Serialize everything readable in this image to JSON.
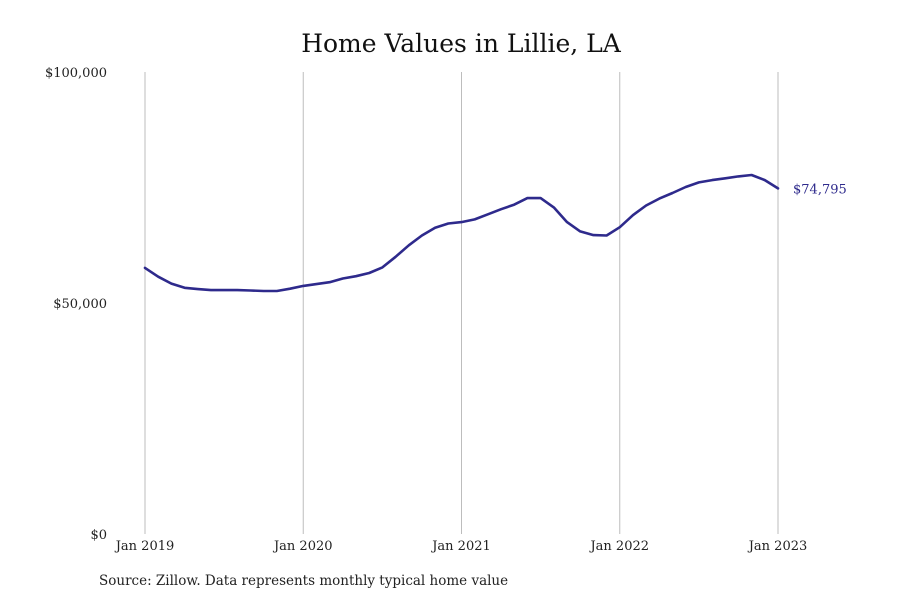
{
  "chart_data": {
    "type": "line",
    "title": "Home Values in Lillie, LA",
    "source": "Source: Zillow. Data represents monthly typical home value",
    "x_ticks": [
      "Jan 2019",
      "Jan 2020",
      "Jan 2021",
      "Jan 2022",
      "Jan 2023"
    ],
    "y_ticks": [
      "$0",
      "$50,000",
      "$100,000"
    ],
    "y_tick_values": [
      0,
      50000,
      100000
    ],
    "ylim": [
      0,
      100000
    ],
    "grid": "vertical",
    "line_color": "#2e2a8c",
    "end_label": "$74,795",
    "series": [
      {
        "x": [
          "2019-01",
          "2019-02",
          "2019-03",
          "2019-04",
          "2019-05",
          "2019-06",
          "2019-07",
          "2019-08",
          "2019-09",
          "2019-10",
          "2019-11",
          "2019-12",
          "2020-01",
          "2020-02",
          "2020-03",
          "2020-04",
          "2020-05",
          "2020-06",
          "2020-07",
          "2020-08",
          "2020-09",
          "2020-10",
          "2020-11",
          "2020-12",
          "2021-01",
          "2021-02",
          "2021-03",
          "2021-04",
          "2021-05",
          "2021-06",
          "2021-07",
          "2021-08",
          "2021-09",
          "2021-10",
          "2021-11",
          "2021-12",
          "2022-01",
          "2022-02",
          "2022-03",
          "2022-04",
          "2022-05",
          "2022-06",
          "2022-07",
          "2022-08",
          "2022-09",
          "2022-10",
          "2022-11",
          "2022-12",
          "2023-01"
        ],
        "values": [
          57600,
          55700,
          54200,
          53300,
          53000,
          52800,
          52800,
          52800,
          52700,
          52600,
          52600,
          53100,
          53700,
          54100,
          54500,
          55300,
          55800,
          56500,
          57700,
          60000,
          62500,
          64600,
          66300,
          67200,
          67500,
          68100,
          69200,
          70300,
          71300,
          72700,
          72700,
          70700,
          67500,
          65500,
          64700,
          64600,
          66400,
          69000,
          71100,
          72600,
          73800,
          75100,
          76100,
          76600,
          77000,
          77400,
          77700,
          76600,
          74795
        ]
      }
    ]
  }
}
